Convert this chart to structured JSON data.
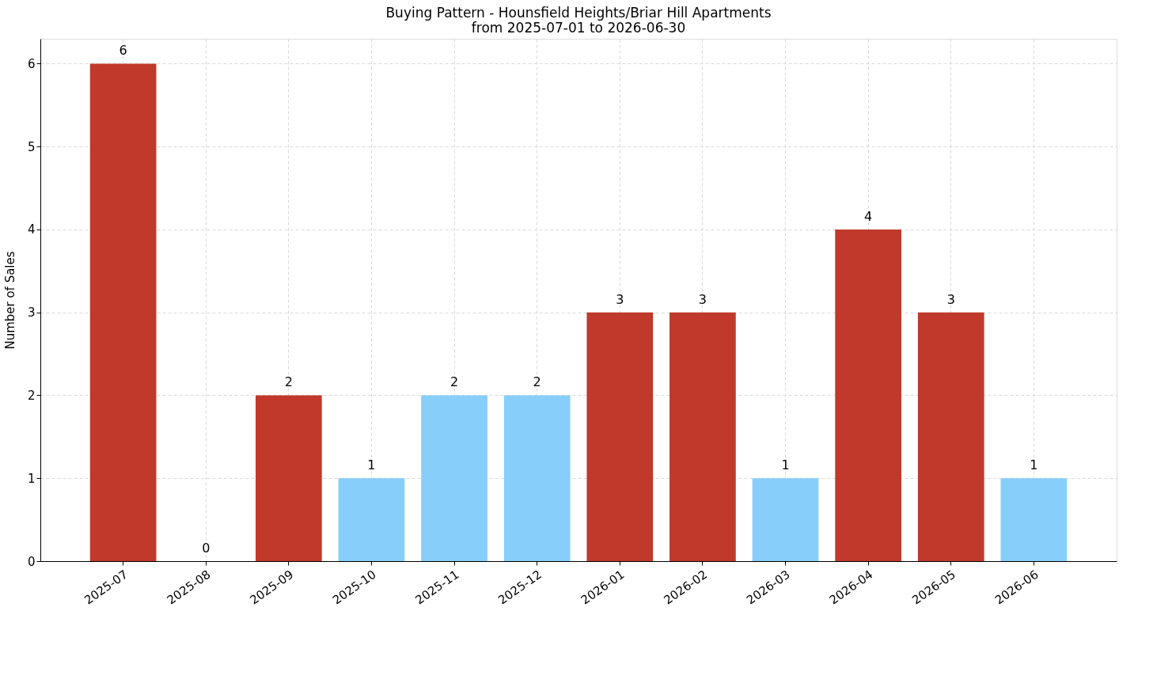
{
  "chart_data": {
    "type": "bar",
    "title": "Buying Pattern - Hounsfield Heights/Briar Hill Apartments",
    "subtitle": "from 2025-07-01 to 2026-06-30",
    "ylabel": "Number of Sales",
    "categories": [
      "2025-07",
      "2025-08",
      "2025-09",
      "2025-10",
      "2025-11",
      "2025-12",
      "2026-01",
      "2026-02",
      "2026-03",
      "2026-04",
      "2026-05",
      "2026-06"
    ],
    "values": [
      6,
      0,
      2,
      1,
      2,
      2,
      3,
      3,
      1,
      4,
      3,
      1
    ],
    "colors": [
      "#c0392b",
      "#87cefa",
      "#c0392b",
      "#87cefa",
      "#87cefa",
      "#87cefa",
      "#c0392b",
      "#c0392b",
      "#87cefa",
      "#c0392b",
      "#c0392b",
      "#87cefa"
    ],
    "ylim": [
      0,
      6.3
    ],
    "yticks": [
      0,
      1,
      2,
      3,
      4,
      5,
      6
    ],
    "grid": true,
    "data_labels": true
  }
}
